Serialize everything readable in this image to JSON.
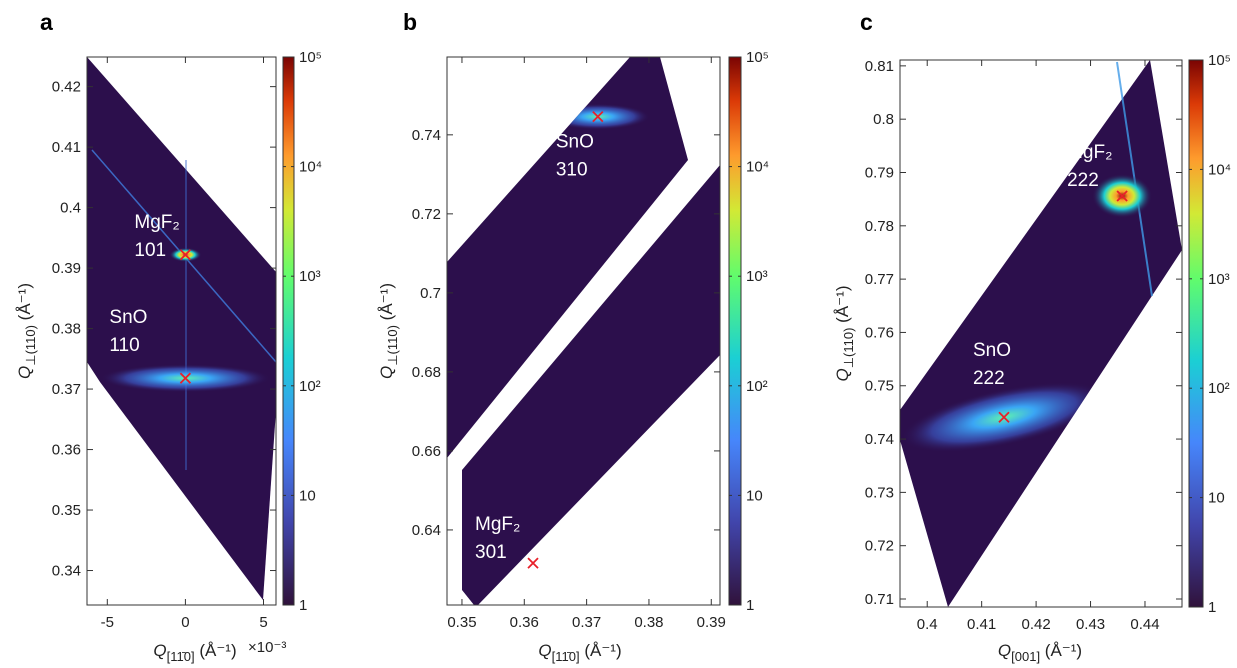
{
  "chart_data": [
    {
      "type": "scatter",
      "panel_label": "a",
      "xlabel": {
        "main": "Q",
        "sub": "[11̄0]",
        "unit": "(Å⁻¹)"
      },
      "x_exponent": "×10⁻³",
      "ylabel": {
        "main": "Q",
        "sub": "⊥(110)",
        "unit": "(Å⁻¹)"
      },
      "xlim": [
        -0.0063,
        0.0058
      ],
      "ylim": [
        0.3343,
        0.4249
      ],
      "xticks": [
        {
          "value": -0.005,
          "label": "-5"
        },
        {
          "value": 0,
          "label": "0"
        },
        {
          "value": 0.005,
          "label": "5"
        }
      ],
      "yticks": [
        0.34,
        0.35,
        0.36,
        0.37,
        0.38,
        0.39,
        0.4,
        0.41,
        0.42
      ],
      "colorbar": {
        "scale": "log",
        "lim": [
          1,
          100000
        ],
        "ticks": [
          {
            "value": 1,
            "label": "1"
          },
          {
            "value": 10,
            "label": "10"
          },
          {
            "value": 100,
            "label": "10²"
          },
          {
            "value": 1000,
            "label": "10³"
          },
          {
            "value": 10000,
            "label": "10⁴"
          },
          {
            "value": 100000,
            "label": "10⁵"
          }
        ]
      },
      "series": [
        {
          "name": "SnO",
          "hkl": "110",
          "color": "#e8202a",
          "x": [
            0
          ],
          "y": [
            0.3718
          ]
        },
        {
          "name": "MgF₂",
          "hkl": "101",
          "color": "#e8202a",
          "x": [
            0
          ],
          "y": [
            0.3922
          ]
        }
      ]
    },
    {
      "type": "scatter",
      "panel_label": "b",
      "xlabel": {
        "main": "Q",
        "sub": "[11̄0]",
        "unit": "(Å⁻¹)"
      },
      "ylabel": {
        "main": "Q",
        "sub": "⊥(110)",
        "unit": "(Å⁻¹)"
      },
      "xlim": [
        0.3476,
        0.3914
      ],
      "ylim": [
        0.621,
        0.7597
      ],
      "xticks": [
        0.35,
        0.36,
        0.37,
        0.38,
        0.39
      ],
      "yticks": [
        0.64,
        0.66,
        0.68,
        0.7,
        0.72,
        0.74
      ],
      "colorbar": {
        "scale": "log",
        "lim": [
          1,
          100000
        ],
        "ticks": [
          {
            "value": 1,
            "label": "1"
          },
          {
            "value": 10,
            "label": "10"
          },
          {
            "value": 100,
            "label": "10²"
          },
          {
            "value": 1000,
            "label": "10³"
          },
          {
            "value": 10000,
            "label": "10⁴"
          },
          {
            "value": 100000,
            "label": "10⁵"
          }
        ]
      },
      "series": [
        {
          "name": "SnO",
          "hkl": "310",
          "color": "#e8202a",
          "x": [
            0.3718
          ],
          "y": [
            0.7446
          ]
        },
        {
          "name": "MgF₂",
          "hkl": "301",
          "color": "#e8202a",
          "x": [
            0.3614
          ],
          "y": [
            0.6316
          ]
        }
      ]
    },
    {
      "type": "scatter",
      "panel_label": "c",
      "xlabel": {
        "main": "Q",
        "sub": "[001]",
        "unit": "(Å⁻¹)"
      },
      "ylabel": {
        "main": "Q",
        "sub": "⊥(110)",
        "unit": "(Å⁻¹)"
      },
      "xlim": [
        0.395,
        0.4468
      ],
      "ylim": [
        0.7085,
        0.8111
      ],
      "xticks": [
        0.4,
        0.41,
        0.42,
        0.43,
        0.44
      ],
      "yticks": [
        0.71,
        0.72,
        0.73,
        0.74,
        0.75,
        0.76,
        0.77,
        0.78,
        0.79,
        0.8,
        0.81
      ],
      "colorbar": {
        "scale": "log",
        "lim": [
          1,
          100000
        ],
        "ticks": [
          {
            "value": 1,
            "label": "1"
          },
          {
            "value": 10,
            "label": "10"
          },
          {
            "value": 100,
            "label": "10²"
          },
          {
            "value": 1000,
            "label": "10³"
          },
          {
            "value": 10000,
            "label": "10⁴"
          },
          {
            "value": 100000,
            "label": "10⁵"
          }
        ]
      },
      "series": [
        {
          "name": "SnO",
          "hkl": "222",
          "color": "#e8202a",
          "x": [
            0.4141
          ],
          "y": [
            0.7441
          ]
        },
        {
          "name": "MgF₂",
          "hkl": "222",
          "color": "#e8202a",
          "x": [
            0.4358
          ],
          "y": [
            0.7856
          ]
        }
      ]
    }
  ]
}
